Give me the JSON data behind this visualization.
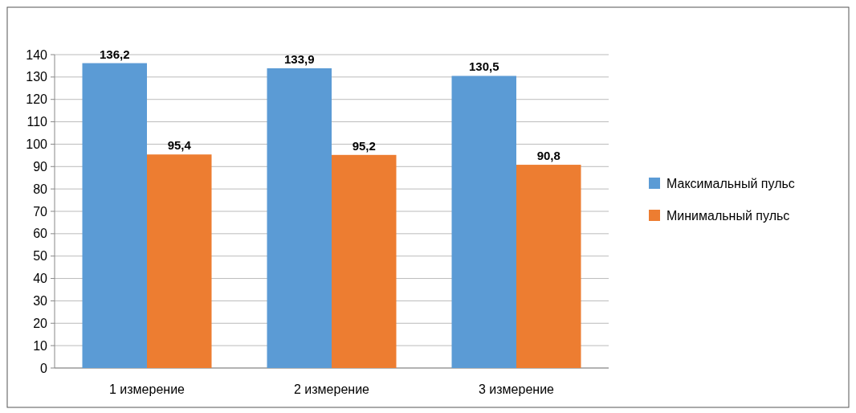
{
  "chart_data": {
    "type": "bar",
    "categories": [
      "1 измерение",
      "2 измерение",
      "3 измерение"
    ],
    "series": [
      {
        "name": "Максимальный пульс",
        "color": "#5b9bd5",
        "values": [
          136.2,
          133.9,
          130.5
        ],
        "value_labels": [
          "136,2",
          "133,9",
          "130,5"
        ]
      },
      {
        "name": "Минимальный пульс",
        "color": "#ed7d31",
        "values": [
          95.4,
          95.2,
          90.8
        ],
        "value_labels": [
          "95,4",
          "95,2",
          "90,8"
        ]
      }
    ],
    "ylim": [
      0,
      140
    ],
    "yticks": [
      0,
      10,
      20,
      30,
      40,
      50,
      60,
      70,
      80,
      90,
      100,
      110,
      120,
      130,
      140
    ],
    "grid": "y",
    "legend": "right"
  }
}
